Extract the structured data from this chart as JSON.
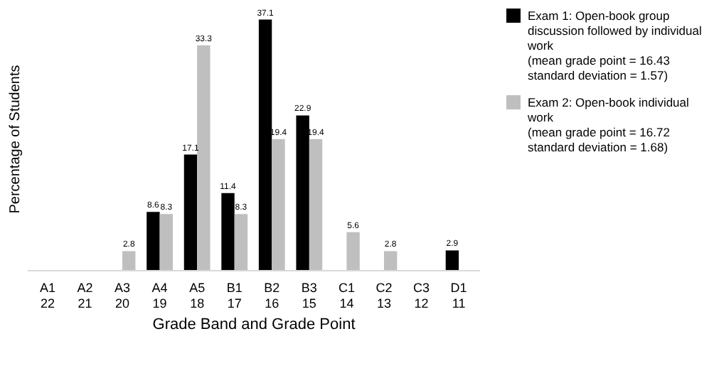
{
  "chart_data": {
    "type": "bar",
    "xlabel": "Grade Band and Grade Point",
    "ylabel": "Percentage of Students",
    "categories": [
      "A1\n22",
      "A2\n21",
      "A3\n20",
      "A4\n19",
      "A5\n18",
      "B1\n17",
      "B2\n16",
      "B3\n15",
      "C1\n14",
      "C2\n13",
      "C3\n12",
      "D1\n11"
    ],
    "series": [
      {
        "name": "Exam 1: Open-book group\ndiscussion followed by individual\nwork\n(mean grade point = 16.43\nstandard deviation = 1.57)",
        "color": "#000000",
        "values": [
          null,
          null,
          null,
          8.6,
          17.1,
          11.4,
          37.1,
          22.9,
          null,
          null,
          null,
          2.9
        ]
      },
      {
        "name": "Exam 2: Open-book individual\nwork\n(mean grade point = 16.72\nstandard deviation = 1.68)",
        "color": "#bfbfbf",
        "values": [
          null,
          null,
          2.8,
          8.3,
          33.3,
          8.3,
          19.4,
          19.4,
          5.6,
          2.8,
          null,
          null
        ]
      }
    ],
    "data_labels": true,
    "legend": "right",
    "grid": false
  }
}
